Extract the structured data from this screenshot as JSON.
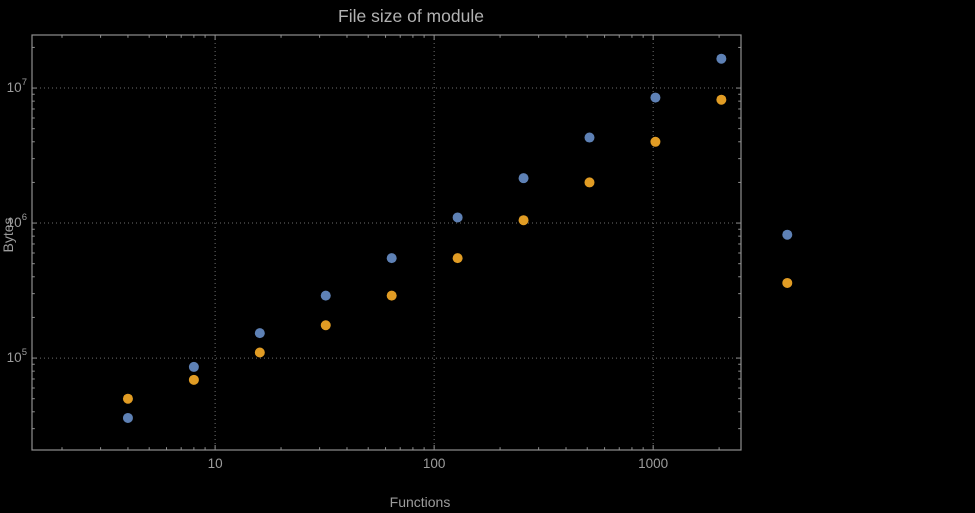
{
  "chart_data": {
    "type": "scatter",
    "title": "File size of module",
    "xlabel": "Functions",
    "ylabel": "Bytes",
    "x_scale": "log",
    "y_scale": "log",
    "grid": "dotted",
    "legend": "none",
    "xlim": [
      1.5,
      2500
    ],
    "ylim": [
      21000,
      25000000
    ],
    "x": [
      4,
      8,
      16,
      32,
      64,
      128,
      256,
      512,
      1024,
      2048,
      4096
    ],
    "series": [
      {
        "name": "blue",
        "color": "#5e81b5",
        "values": [
          36000,
          86000,
          153000,
          290000,
          550000,
          1100000,
          2150000,
          4300000,
          8500000,
          16500000,
          820000
        ]
      },
      {
        "name": "orange",
        "color": "#e19c24",
        "values": [
          50000,
          69000,
          110000,
          175000,
          290000,
          550000,
          1050000,
          2000000,
          4000000,
          8200000,
          360000
        ]
      }
    ],
    "axes": {
      "x": {
        "ticks": [
          {
            "v": 10,
            "label": "10"
          },
          {
            "v": 100,
            "label": "100"
          },
          {
            "v": 1000,
            "label": "1000"
          }
        ]
      },
      "y": {
        "ticks": [
          {
            "v": 100000,
            "label": "10",
            "sup": "5"
          },
          {
            "v": 1000000,
            "label": "10",
            "sup": "6"
          },
          {
            "v": 10000000,
            "label": "10",
            "sup": "7"
          }
        ]
      }
    },
    "colors": {
      "background": "#000000",
      "frame": "#909090",
      "grid": "#6e6e6e",
      "text": "#9c9c9c",
      "title": "#b2b2b2"
    }
  }
}
